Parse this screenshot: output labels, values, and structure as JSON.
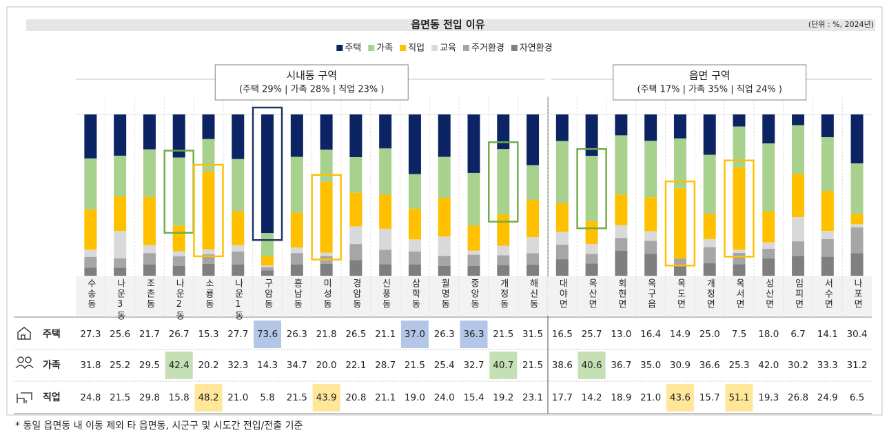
{
  "chart_data": {
    "type": "stacked_bar_100",
    "title": "읍면동 전입 이유",
    "unit_note": "(단위 : %, 2024년)",
    "footnote": "* 동일 읍면동 내 이동 제외 타 읍면동, 시군구 및 시도간 전입/전출 기준",
    "groups": [
      {
        "name": "시내동 구역",
        "summary": "(주택 29% | 가족 28% | 직업 23% )",
        "count": 16
      },
      {
        "name": "읍면 구역",
        "summary": "(주택 17% | 가족 35% | 직업 24% )",
        "count": 11
      }
    ],
    "categories": [
      "수송동",
      "나운3동",
      "조촌동",
      "나운2동",
      "소룡동",
      "나운1동",
      "구암동",
      "흥남동",
      "미성동",
      "경암동",
      "신풍동",
      "삼학동",
      "월명동",
      "중앙동",
      "개정동",
      "해신동",
      "대야면",
      "옥산면",
      "회현면",
      "옥구읍",
      "옥도면",
      "개정면",
      "옥서면",
      "성산면",
      "임피면",
      "서수면",
      "나포면"
    ],
    "ylim": [
      0,
      100
    ],
    "series": [
      {
        "name": "주택",
        "color": "#0c2463",
        "values": [
          27.3,
          25.6,
          21.7,
          26.7,
          15.3,
          27.7,
          73.6,
          26.3,
          21.8,
          26.5,
          21.1,
          37.0,
          26.3,
          36.3,
          21.5,
          31.5,
          16.5,
          25.7,
          13.0,
          16.4,
          14.9,
          25.0,
          7.5,
          18.0,
          6.7,
          14.1,
          30.4
        ],
        "value_labels": [
          "27.3",
          "25.6",
          "21.7",
          "26.7",
          "15.3",
          "27.7",
          "73.6",
          "26.3",
          "21.8",
          "26.5",
          "21.1",
          "37.0",
          "26.3",
          "36.3",
          "21.5",
          "31.5",
          "16.5",
          "25.7",
          "13.0",
          "16.4",
          "14.9",
          "25.0",
          "7.5",
          "18.0",
          "6.7",
          "14.1",
          "30.4"
        ]
      },
      {
        "name": "가족",
        "color": "#a9d18e",
        "values": [
          31.8,
          25.2,
          29.5,
          42.4,
          20.2,
          32.3,
          14.3,
          34.7,
          20.0,
          22.1,
          28.7,
          21.5,
          25.4,
          32.7,
          40.7,
          21.5,
          38.6,
          40.6,
          36.7,
          35.0,
          30.9,
          36.6,
          25.3,
          42.0,
          30.2,
          33.3,
          31.2
        ],
        "value_labels": [
          "31.8",
          "25.2",
          "29.5",
          "42.4",
          "20.2",
          "32.3",
          "14.3",
          "34.7",
          "20.0",
          "22.1",
          "28.7",
          "21.5",
          "25.4",
          "32.7",
          "40.7",
          "21.5",
          "38.6",
          "40.6",
          "36.7",
          "35.0",
          "30.9",
          "36.6",
          "25.3",
          "42.0",
          "30.2",
          "33.3",
          "31.2"
        ]
      },
      {
        "name": "직업",
        "color": "#ffc000",
        "values": [
          24.8,
          21.5,
          29.8,
          15.8,
          48.2,
          21.0,
          5.8,
          21.5,
          43.9,
          20.8,
          21.1,
          19.0,
          24.0,
          15.4,
          19.2,
          23.1,
          17.7,
          14.2,
          18.9,
          21.0,
          43.6,
          15.7,
          51.1,
          19.3,
          26.8,
          24.9,
          6.5
        ],
        "value_labels": [
          "24.8",
          "21.5",
          "29.8",
          "15.8",
          "48.2",
          "21.0",
          "5.8",
          "21.5",
          "43.9",
          "20.8",
          "21.1",
          "19.0",
          "24.0",
          "15.4",
          "19.2",
          "23.1",
          "17.7",
          "14.2",
          "18.9",
          "21.0",
          "43.6",
          "15.7",
          "51.1",
          "19.3",
          "26.8",
          "24.9",
          "6.5"
        ]
      },
      {
        "name": "교육",
        "color": "#d9d9d9",
        "values": [
          4.5,
          17.0,
          5.0,
          3.0,
          3.0,
          4.0,
          1.0,
          3.5,
          2.0,
          11.0,
          13.0,
          7.5,
          12.0,
          2.6,
          6.0,
          10.0,
          8.0,
          6.0,
          8.0,
          6.0,
          0.0,
          5.0,
          2.0,
          4.0,
          15.0,
          5.0,
          2.0
        ]
      },
      {
        "name": "주거환경",
        "color": "#a6a6a6",
        "values": [
          6.6,
          5.7,
          7.0,
          6.0,
          6.0,
          8.0,
          2.0,
          7.0,
          5.0,
          10.0,
          9.0,
          8.0,
          6.3,
          7.0,
          6.0,
          7.0,
          9.0,
          6.0,
          8.0,
          8.0,
          4.0,
          10.0,
          7.0,
          6.0,
          9.0,
          11.0,
          16.0
        ]
      },
      {
        "name": "자연환경",
        "color": "#7f7f7f",
        "values": [
          5.0,
          5.0,
          7.0,
          6.1,
          7.3,
          7.0,
          3.3,
          7.0,
          7.3,
          9.6,
          7.1,
          7.0,
          6.0,
          6.0,
          6.6,
          6.9,
          10.2,
          7.5,
          15.4,
          13.6,
          6.6,
          7.7,
          7.1,
          10.7,
          12.3,
          11.7,
          13.9
        ]
      }
    ],
    "table_rows": [
      0,
      1,
      2
    ],
    "bar_outlines": [
      [
        0,
        6
      ],
      [
        1,
        3
      ],
      [
        1,
        14
      ],
      [
        1,
        17
      ],
      [
        2,
        4
      ],
      [
        2,
        8
      ],
      [
        2,
        20
      ],
      [
        2,
        22
      ]
    ],
    "cell_highlights": [
      [
        0,
        6,
        "#b4c6e7"
      ],
      [
        0,
        11,
        "#b4c6e7"
      ],
      [
        0,
        13,
        "#b4c6e7"
      ],
      [
        1,
        3,
        "#c5e0b4"
      ],
      [
        1,
        14,
        "#c5e0b4"
      ],
      [
        1,
        17,
        "#c5e0b4"
      ],
      [
        2,
        4,
        "#ffe699"
      ],
      [
        2,
        8,
        "#ffe699"
      ],
      [
        2,
        20,
        "#ffe699"
      ],
      [
        2,
        22,
        "#ffe699"
      ]
    ],
    "outline_colors": [
      "#1f3864",
      "#70ad47",
      "#ffc000"
    ]
  }
}
